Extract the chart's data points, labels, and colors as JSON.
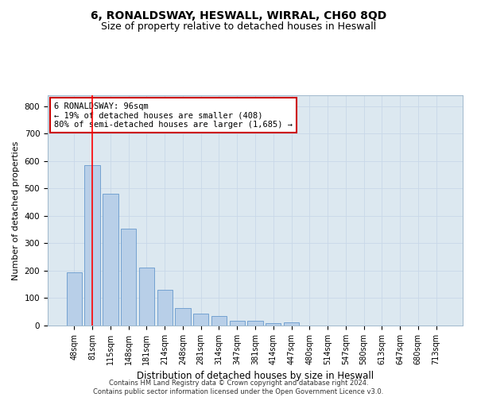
{
  "title": "6, RONALDSWAY, HESWALL, WIRRAL, CH60 8QD",
  "subtitle": "Size of property relative to detached houses in Heswall",
  "xlabel": "Distribution of detached houses by size in Heswall",
  "ylabel": "Number of detached properties",
  "footer_line1": "Contains HM Land Registry data © Crown copyright and database right 2024.",
  "footer_line2": "Contains public sector information licensed under the Open Government Licence v3.0.",
  "categories": [
    "48sqm",
    "81sqm",
    "115sqm",
    "148sqm",
    "181sqm",
    "214sqm",
    "248sqm",
    "281sqm",
    "314sqm",
    "347sqm",
    "381sqm",
    "414sqm",
    "447sqm",
    "480sqm",
    "514sqm",
    "547sqm",
    "580sqm",
    "613sqm",
    "647sqm",
    "680sqm",
    "713sqm"
  ],
  "values": [
    193,
    585,
    480,
    352,
    212,
    130,
    65,
    44,
    35,
    18,
    16,
    10,
    12,
    0,
    0,
    0,
    0,
    0,
    0,
    0,
    0
  ],
  "bar_color": "#b8cfe8",
  "bar_edge_color": "#6699cc",
  "vline_x_index": 1,
  "vline_color": "red",
  "annotation_text": "6 RONALDSWAY: 96sqm\n← 19% of detached houses are smaller (408)\n80% of semi-detached houses are larger (1,685) →",
  "annotation_box_edgecolor": "#cc0000",
  "annotation_box_facecolor": "white",
  "ylim": [
    0,
    840
  ],
  "yticks": [
    0,
    100,
    200,
    300,
    400,
    500,
    600,
    700,
    800
  ],
  "grid_color": "#c8d8e8",
  "axes_facecolor": "#dce8f0",
  "title_fontsize": 10,
  "subtitle_fontsize": 9,
  "xlabel_fontsize": 8.5,
  "ylabel_fontsize": 8,
  "tick_fontsize": 7,
  "annot_fontsize": 7.5,
  "footer_fontsize": 6
}
